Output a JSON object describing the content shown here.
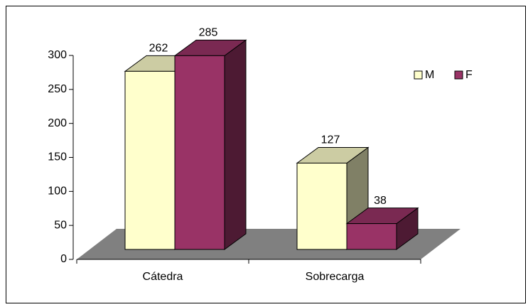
{
  "chart_data": {
    "type": "bar3d",
    "categories": [
      "Cátedra",
      "Sobrecarga"
    ],
    "series": [
      {
        "name": "M",
        "color": "#ffffcc",
        "values": [
          262,
          127
        ]
      },
      {
        "name": "F",
        "color": "#993366",
        "values": [
          285,
          38
        ]
      }
    ],
    "ylim": [
      0,
      300
    ],
    "yticks": [
      0,
      50,
      100,
      150,
      200,
      250,
      300
    ],
    "legend": "top-right"
  }
}
